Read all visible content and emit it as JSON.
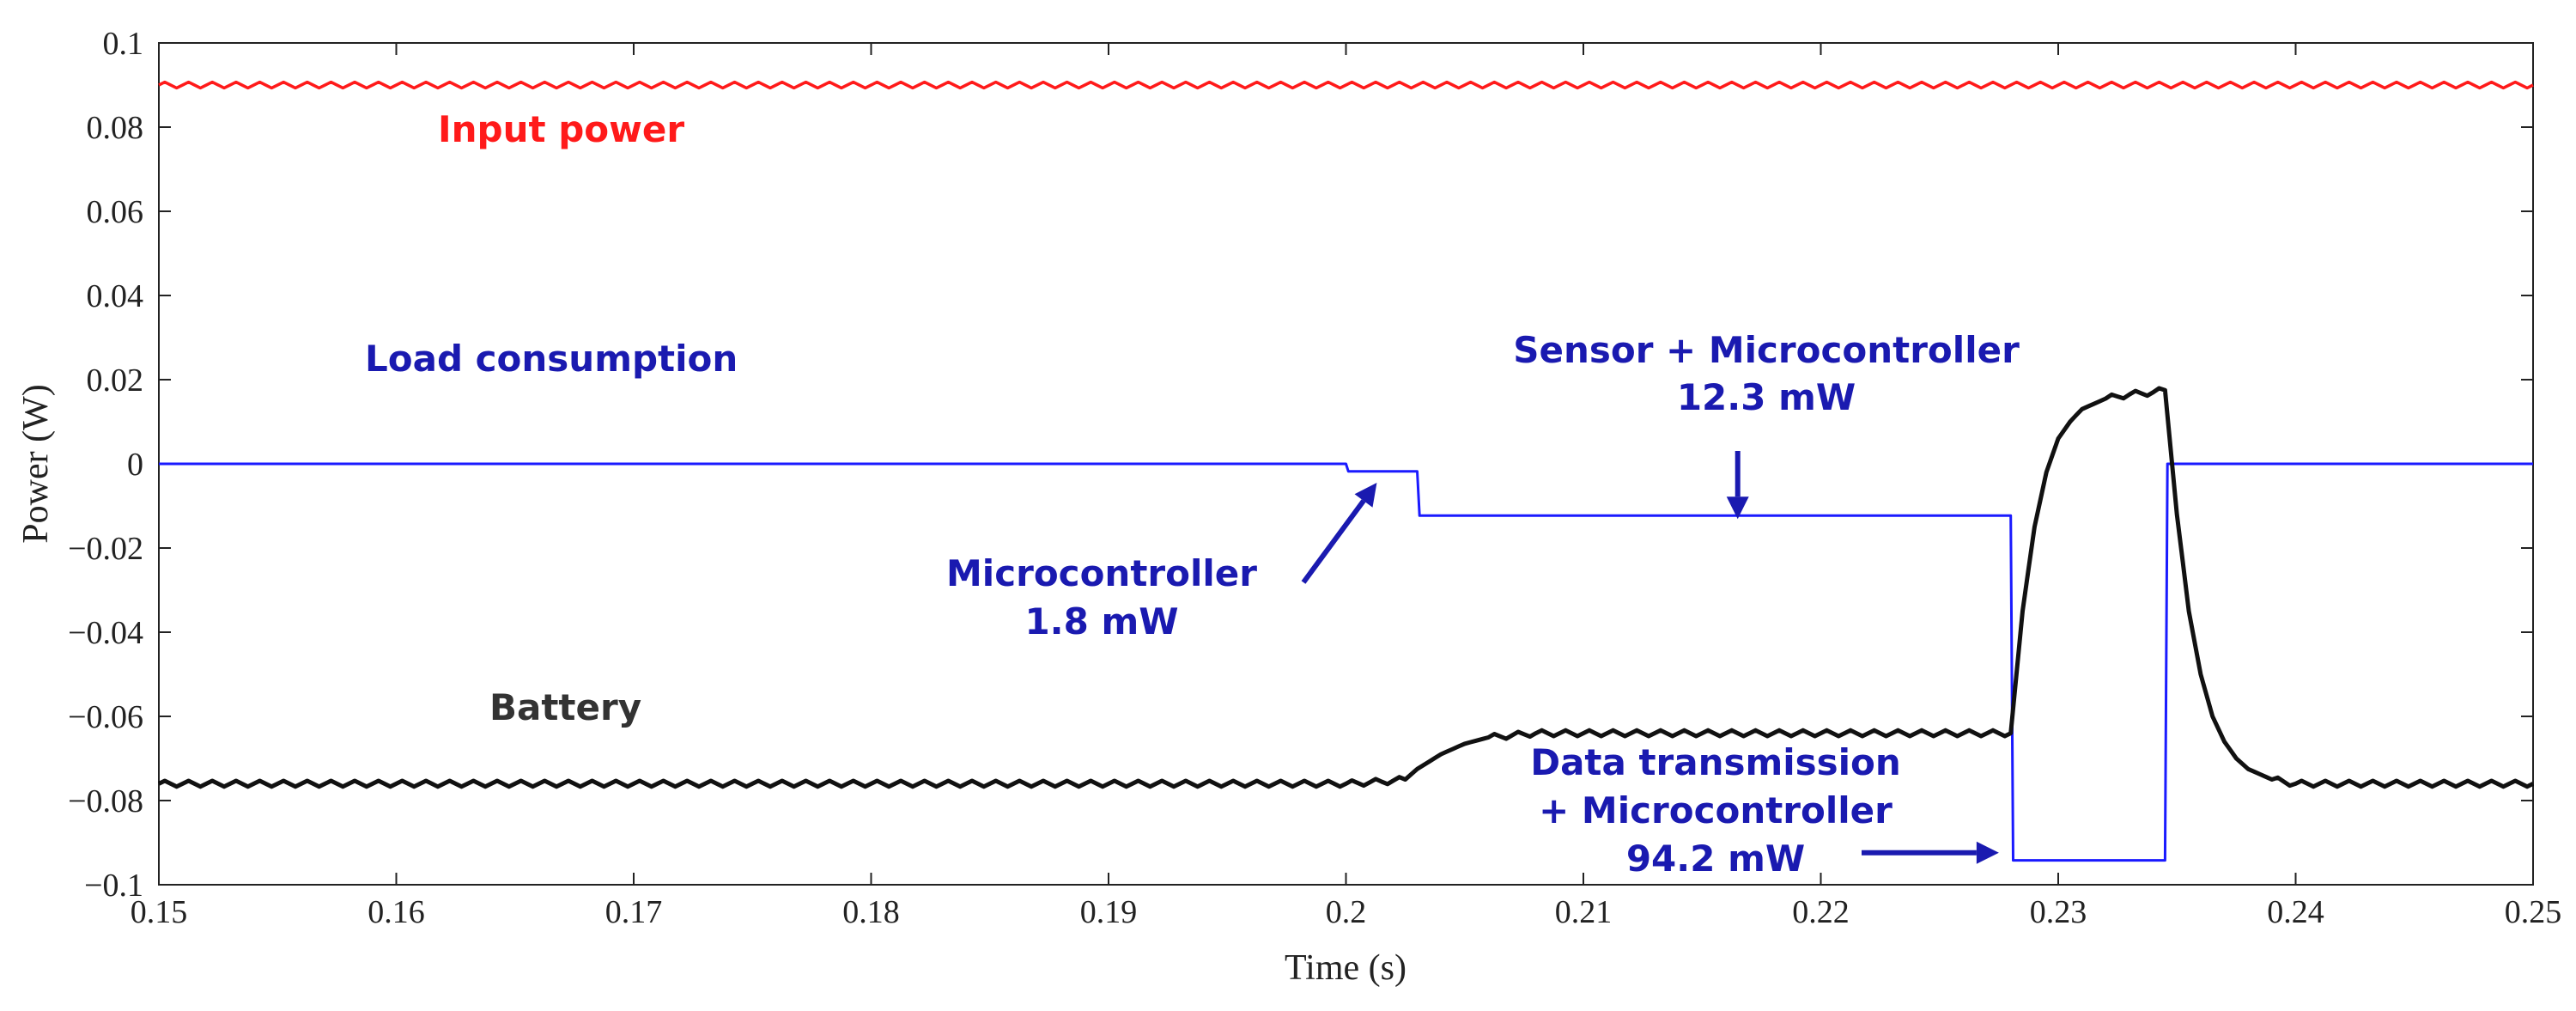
{
  "chart_data": {
    "type": "line",
    "xlabel": "Time (s)",
    "ylabel": "Power (W)",
    "xlim": [
      0.15,
      0.25
    ],
    "ylim": [
      -0.1,
      0.1
    ],
    "x_ticks": [
      0.15,
      0.16,
      0.17,
      0.18,
      0.19,
      0.2,
      0.21,
      0.22,
      0.23,
      0.24,
      0.25
    ],
    "x_tick_labels": [
      "0.15",
      "0.16",
      "0.17",
      "0.18",
      "0.19",
      "0.2",
      "0.21",
      "0.22",
      "0.23",
      "0.24",
      "0.25"
    ],
    "y_ticks": [
      0.1,
      0.08,
      0.06,
      0.04,
      0.02,
      0,
      -0.02,
      -0.04,
      -0.06,
      -0.08,
      -0.1
    ],
    "y_tick_labels": [
      "0.1",
      "0.08",
      "0.06",
      "0.04",
      "0.02",
      "0",
      "−0.02",
      "−0.04",
      "−0.06",
      "−0.08",
      "−0.1"
    ],
    "grid": false,
    "colors": {
      "input": "#ff1a1a",
      "load": "#1a1aff",
      "battery": "#111111",
      "annotation": "#1a1ab0",
      "battery_label": "#333333",
      "axes": "#222222"
    },
    "series": [
      {
        "name": "Input power",
        "ripple": 0.0007,
        "x": [
          0.15,
          0.25
        ],
        "y": [
          0.09,
          0.09
        ]
      },
      {
        "name": "Load consumption",
        "x": [
          0.15,
          0.2,
          0.2001,
          0.203,
          0.2031,
          0.228,
          0.2281,
          0.2345,
          0.2346,
          0.25
        ],
        "y": [
          0,
          0,
          -0.0018,
          -0.0018,
          -0.0123,
          -0.0123,
          -0.0942,
          -0.0942,
          0,
          0
        ]
      },
      {
        "name": "Battery",
        "ripple": 0.0007,
        "x": [
          0.15,
          0.2,
          0.2015,
          0.2025,
          0.203,
          0.204,
          0.205,
          0.206,
          0.208,
          0.21,
          0.22,
          0.228,
          0.2285,
          0.229,
          0.2295,
          0.23,
          0.2305,
          0.231,
          0.232,
          0.233,
          0.234,
          0.2345,
          0.235,
          0.2355,
          0.236,
          0.2365,
          0.237,
          0.2375,
          0.238,
          0.239,
          0.24,
          0.245,
          0.25
        ],
        "y": [
          -0.076,
          -0.076,
          -0.0755,
          -0.075,
          -0.0725,
          -0.069,
          -0.0665,
          -0.065,
          -0.064,
          -0.064,
          -0.064,
          -0.064,
          -0.035,
          -0.015,
          -0.002,
          0.006,
          0.01,
          0.013,
          0.0155,
          0.0165,
          0.017,
          0.0175,
          -0.012,
          -0.035,
          -0.05,
          -0.06,
          -0.066,
          -0.07,
          -0.0725,
          -0.075,
          -0.076,
          -0.076,
          -0.076
        ]
      }
    ],
    "annotations": [
      {
        "name": "input-power",
        "text": [
          "Input power"
        ]
      },
      {
        "name": "load-consumption",
        "text": [
          "Load consumption"
        ]
      },
      {
        "name": "battery",
        "text": [
          "Battery"
        ]
      },
      {
        "name": "microcontroller",
        "text": [
          "Microcontroller",
          "1.8 mW"
        ]
      },
      {
        "name": "sensor-microcontroller",
        "text": [
          "Sensor + Microcontroller",
          "12.3 mW"
        ]
      },
      {
        "name": "data-transmission",
        "text": [
          "Data transmission",
          "+ Microcontroller",
          "94.2 mW"
        ]
      }
    ]
  }
}
